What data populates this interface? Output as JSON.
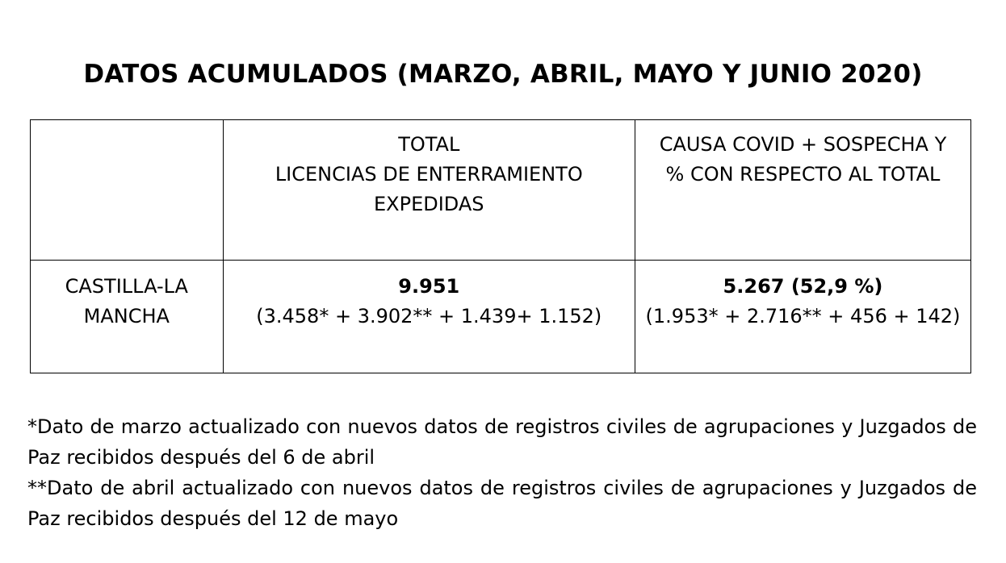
{
  "title": "DATOS ACUMULADOS (MARZO, ABRIL, MAYO Y JUNIO 2020)",
  "table": {
    "header": {
      "region": "",
      "total": [
        "TOTAL",
        "LICENCIAS DE ENTERRAMIENTO",
        "EXPEDIDAS"
      ],
      "covid": [
        "CAUSA COVID + SOSPECHA Y",
        "% CON RESPECTO AL TOTAL"
      ]
    },
    "rows": [
      {
        "region": [
          "CASTILLA-LA",
          "MANCHA"
        ],
        "total_value": "9.951",
        "total_breakdown": "(3.458* + 3.902** + 1.439+ 1.152)",
        "covid_value": "5.267 (52,9 %)",
        "covid_breakdown": "(1.953* + 2.716** + 456 + 142)"
      }
    ]
  },
  "footnotes": [
    "*Dato de marzo actualizado con nuevos datos de registros civiles de agrupaciones y Juzgados de Paz recibidos después del 6 de abril",
    "**Dato de abril actualizado con nuevos datos de registros civiles de agrupaciones y Juzgados de Paz recibidos después del 12 de mayo"
  ]
}
